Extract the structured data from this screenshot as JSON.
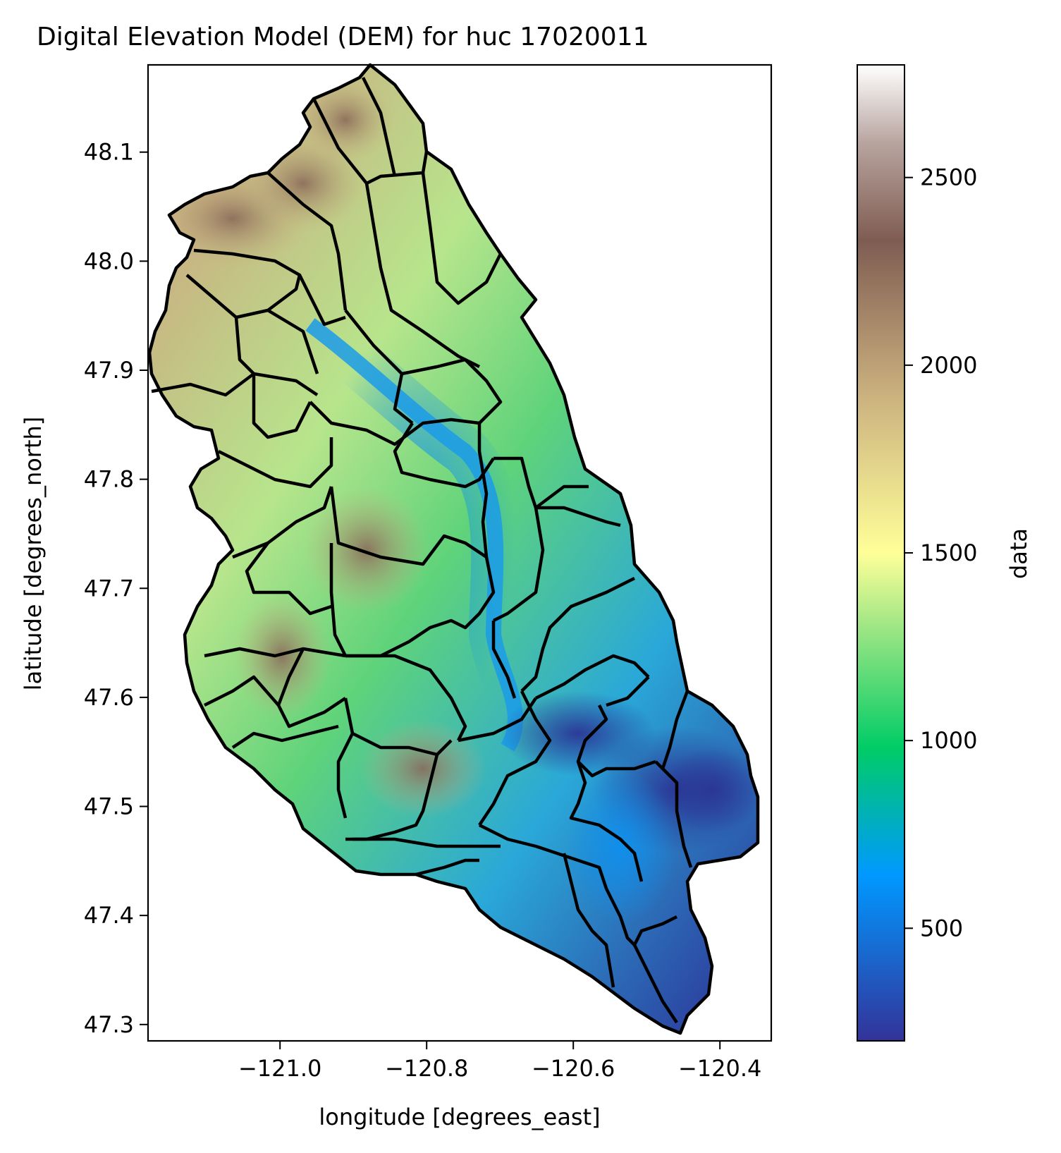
{
  "map": {
    "title": "Digital Elevation Model (DEM) for huc 17020011",
    "xlabel": "longitude [degrees_east]",
    "ylabel": "latitude [degrees_north]",
    "x_ticks": [
      -121.0,
      -120.8,
      -120.6,
      -120.4
    ],
    "x_tick_labels": [
      "−121.0",
      "−120.8",
      "−120.6",
      "−120.4"
    ],
    "y_ticks": [
      47.3,
      47.4,
      47.5,
      47.6,
      47.7,
      47.8,
      47.9,
      48.0,
      48.1
    ],
    "y_tick_labels": [
      "47.3",
      "47.4",
      "47.5",
      "47.6",
      "47.7",
      "47.8",
      "47.9",
      "48.0",
      "48.1"
    ],
    "xlim": [
      -121.18,
      -120.33
    ],
    "ylim": [
      47.285,
      48.18
    ],
    "colormap": "terrain",
    "colorbar": {
      "label": "data",
      "ticks": [
        500,
        1000,
        1500,
        2000,
        2500
      ],
      "tick_labels": [
        "500",
        "1000",
        "1500",
        "2000",
        "2500"
      ],
      "range": [
        200,
        2800
      ],
      "colors": [
        "#333399",
        "#0099ff",
        "#00cc66",
        "#99e583",
        "#ffff99",
        "#ccb27f",
        "#7f5c52",
        "#b8a49f",
        "#ffffff"
      ]
    },
    "boundary_color": "#000000"
  }
}
